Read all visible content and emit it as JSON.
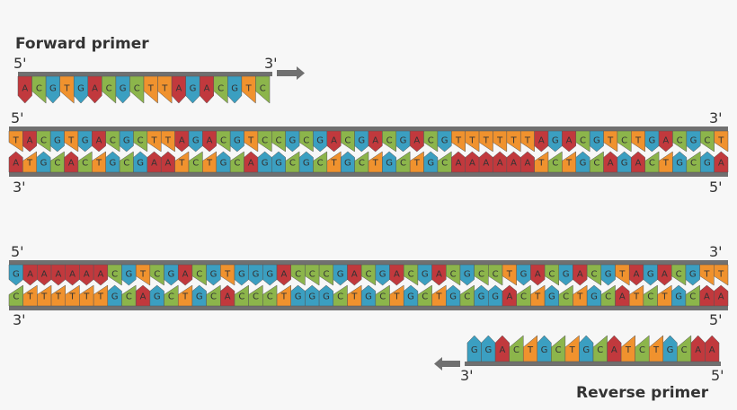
{
  "forward_primer": {
    "label": "Forward primer",
    "end_5": "5'",
    "end_3": "3'",
    "bases": "ACGTGACGCTTAGACGTC"
  },
  "duplexes": [
    {
      "top_5": "5'",
      "top_3": "3'",
      "top": "TACGTGACGCTTAGACGTCCGCGACGACGACGTTTTTTAGACGTCTGACGCT",
      "bottom": "ATGCACTGCGAATCTGCAGGCGCTGCTGCTGCAAAAAATCTGCAGACTGCGA",
      "bottom_3": "3'",
      "bottom_5": "5'"
    },
    {
      "top_5": "5'",
      "top_3": "3'",
      "top": "GAAAAAACGTCGACGTGGGACCCGACGACGACGCCTGACGACGTAGACGTT",
      "bottom": "CTTTTTTGCAGCTGCACCCTGGGCTGCTGCTGCGGACTGCTGCATCTGCAA",
      "bottom_3": "3'",
      "bottom_5": "5'"
    }
  ],
  "reverse_primer": {
    "label": "Reverse primer",
    "end_3": "3'",
    "end_5": "5'",
    "bases": "GGACTGCTGCATCTGCAA"
  }
}
